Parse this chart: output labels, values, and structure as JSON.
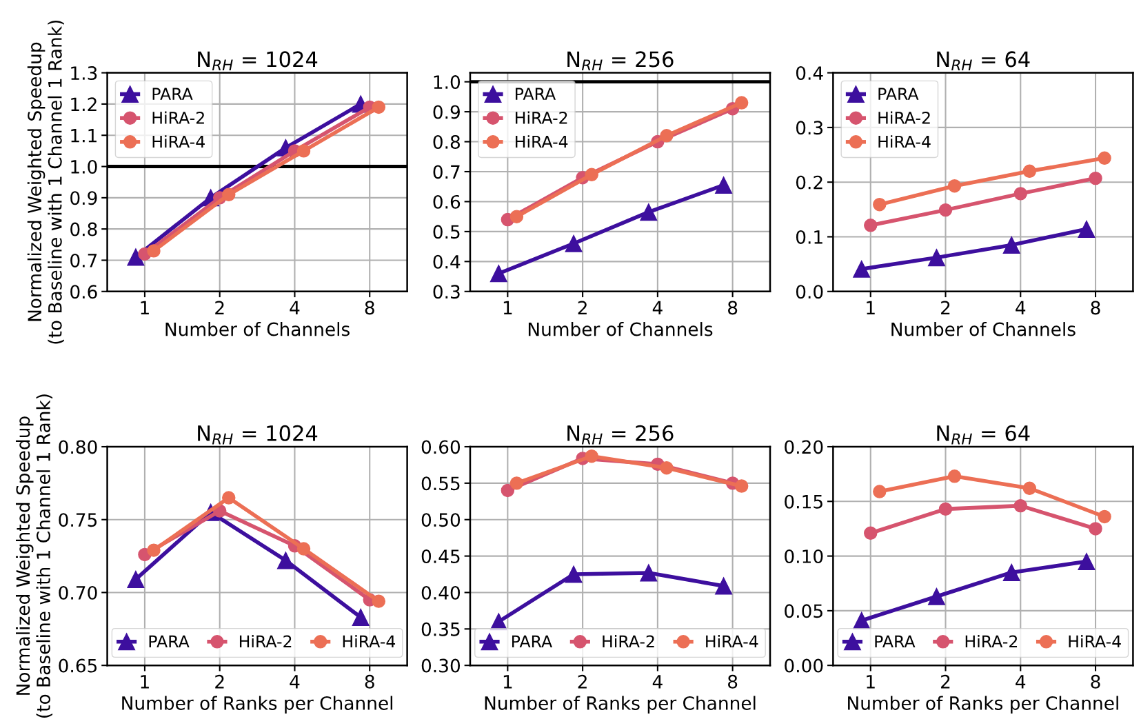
{
  "chart_data": [
    {
      "type": "line",
      "title": "N$_{RH}$ = 1024",
      "xlabel": "Number of Channels",
      "ylabel": "Normalized Weighted Speedup\n(to Baseline with 1 Channel 1 Rank)",
      "categories": [
        "1",
        "2",
        "4",
        "8"
      ],
      "ylim": [
        0.6,
        1.3
      ],
      "yticks": [
        0.6,
        0.7,
        0.8,
        0.9,
        {
          "value": 1,
          "label": "1.0"
        },
        1.1,
        1.2,
        1.3
      ],
      "grid": true,
      "legend": "top left",
      "ref_lines": [
        {
          "axis": "y",
          "value": 1.0,
          "color": "#000000"
        }
      ],
      "series": [
        {
          "name": "PARA",
          "color": "#3d0f9e",
          "marker": "triangle",
          "values": [
            0.71,
            0.9,
            1.06,
            1.2
          ]
        },
        {
          "name": "HiRA-2",
          "color": "#d6546e",
          "marker": "circle",
          "values": [
            0.72,
            0.9,
            1.05,
            1.19
          ]
        },
        {
          "name": "HiRA-4",
          "color": "#ec6f55",
          "marker": "circle",
          "values": [
            0.73,
            0.91,
            1.05,
            1.19
          ]
        }
      ]
    },
    {
      "type": "line",
      "title": "N$_{RH}$ = 256",
      "xlabel": "Number of Channels",
      "categories": [
        "1",
        "2",
        "4",
        "8"
      ],
      "ylim": [
        0.3,
        1.03
      ],
      "yticks": [
        0.3,
        0.4,
        0.5,
        0.6,
        0.7,
        0.8,
        0.9,
        {
          "value": 1,
          "label": "1.0"
        }
      ],
      "grid": true,
      "legend": "top left",
      "ref_lines": [
        {
          "axis": "y",
          "value": 1.0,
          "color": "#000000"
        }
      ],
      "series": [
        {
          "name": "PARA",
          "color": "#3d0f9e",
          "marker": "triangle",
          "values": [
            0.36,
            0.46,
            0.565,
            0.655
          ]
        },
        {
          "name": "HiRA-2",
          "color": "#d6546e",
          "marker": "circle",
          "values": [
            0.54,
            0.68,
            0.8,
            0.91
          ]
        },
        {
          "name": "HiRA-4",
          "color": "#ec6f55",
          "marker": "circle",
          "values": [
            0.55,
            0.69,
            0.82,
            0.93
          ]
        }
      ]
    },
    {
      "type": "line",
      "title": "N$_{RH}$ = 64",
      "xlabel": "Number of Channels",
      "categories": [
        "1",
        "2",
        "4",
        "8"
      ],
      "ylim": [
        0.0,
        0.4
      ],
      "yticks": [
        {
          "value": 0,
          "label": "0.0"
        },
        0.1,
        0.2,
        0.3,
        0.4
      ],
      "grid": true,
      "legend": "top left",
      "series": [
        {
          "name": "PARA",
          "color": "#3d0f9e",
          "marker": "triangle",
          "values": [
            0.041,
            0.062,
            0.085,
            0.114
          ]
        },
        {
          "name": "HiRA-2",
          "color": "#d6546e",
          "marker": "circle",
          "values": [
            0.121,
            0.149,
            0.179,
            0.207
          ]
        },
        {
          "name": "HiRA-4",
          "color": "#ec6f55",
          "marker": "circle",
          "values": [
            0.159,
            0.193,
            0.22,
            0.244
          ]
        }
      ]
    },
    {
      "type": "line",
      "title": "N$_{RH}$ = 1024",
      "xlabel": "Number of Ranks per Channel",
      "ylabel": "Normalized Weighted Speedup\n(to Baseline with 1 Channel 1 Rank)",
      "categories": [
        "1",
        "2",
        "4",
        "8"
      ],
      "ylim": [
        0.65,
        0.8
      ],
      "yticks": [
        {
          "value": 0.65,
          "label": "0.65"
        },
        {
          "value": 0.7,
          "label": "0.70"
        },
        {
          "value": 0.75,
          "label": "0.75"
        },
        {
          "value": 0.8,
          "label": "0.80"
        }
      ],
      "grid": true,
      "legend": "bottom",
      "series": [
        {
          "name": "PARA",
          "color": "#3d0f9e",
          "marker": "triangle",
          "values": [
            0.709,
            0.755,
            0.722,
            0.683
          ]
        },
        {
          "name": "HiRA-2",
          "color": "#d6546e",
          "marker": "circle",
          "values": [
            0.726,
            0.756,
            0.732,
            0.695
          ]
        },
        {
          "name": "HiRA-4",
          "color": "#ec6f55",
          "marker": "circle",
          "values": [
            0.729,
            0.765,
            0.73,
            0.694
          ]
        }
      ]
    },
    {
      "type": "line",
      "title": "N$_{RH}$ = 256",
      "xlabel": "Number of Ranks per Channel",
      "categories": [
        "1",
        "2",
        "4",
        "8"
      ],
      "ylim": [
        0.3,
        0.6
      ],
      "yticks": [
        {
          "value": 0.3,
          "label": "0.30"
        },
        0.35,
        {
          "value": 0.4,
          "label": "0.40"
        },
        0.45,
        {
          "value": 0.5,
          "label": "0.50"
        },
        0.55,
        {
          "value": 0.6,
          "label": "0.60"
        }
      ],
      "grid": true,
      "legend": "bottom",
      "series": [
        {
          "name": "PARA",
          "color": "#3d0f9e",
          "marker": "triangle",
          "values": [
            0.36,
            0.425,
            0.427,
            0.409
          ]
        },
        {
          "name": "HiRA-2",
          "color": "#d6546e",
          "marker": "circle",
          "values": [
            0.54,
            0.584,
            0.576,
            0.55
          ]
        },
        {
          "name": "HiRA-4",
          "color": "#ec6f55",
          "marker": "circle",
          "values": [
            0.55,
            0.587,
            0.571,
            0.546
          ]
        }
      ]
    },
    {
      "type": "line",
      "title": "N$_{RH}$ = 64",
      "xlabel": "Number of Ranks per Channel",
      "categories": [
        "1",
        "2",
        "4",
        "8"
      ],
      "ylim": [
        0.0,
        0.2
      ],
      "yticks": [
        {
          "value": 0.0,
          "label": "0.00"
        },
        0.05,
        {
          "value": 0.1,
          "label": "0.10"
        },
        0.15,
        {
          "value": 0.2,
          "label": "0.20"
        }
      ],
      "grid": true,
      "legend": "bottom",
      "series": [
        {
          "name": "PARA",
          "color": "#3d0f9e",
          "marker": "triangle",
          "values": [
            0.041,
            0.063,
            0.085,
            0.095
          ]
        },
        {
          "name": "HiRA-2",
          "color": "#d6546e",
          "marker": "circle",
          "values": [
            0.121,
            0.143,
            0.146,
            0.125
          ]
        },
        {
          "name": "HiRA-4",
          "color": "#ec6f55",
          "marker": "circle",
          "values": [
            0.159,
            0.173,
            0.162,
            0.136
          ]
        }
      ]
    }
  ]
}
